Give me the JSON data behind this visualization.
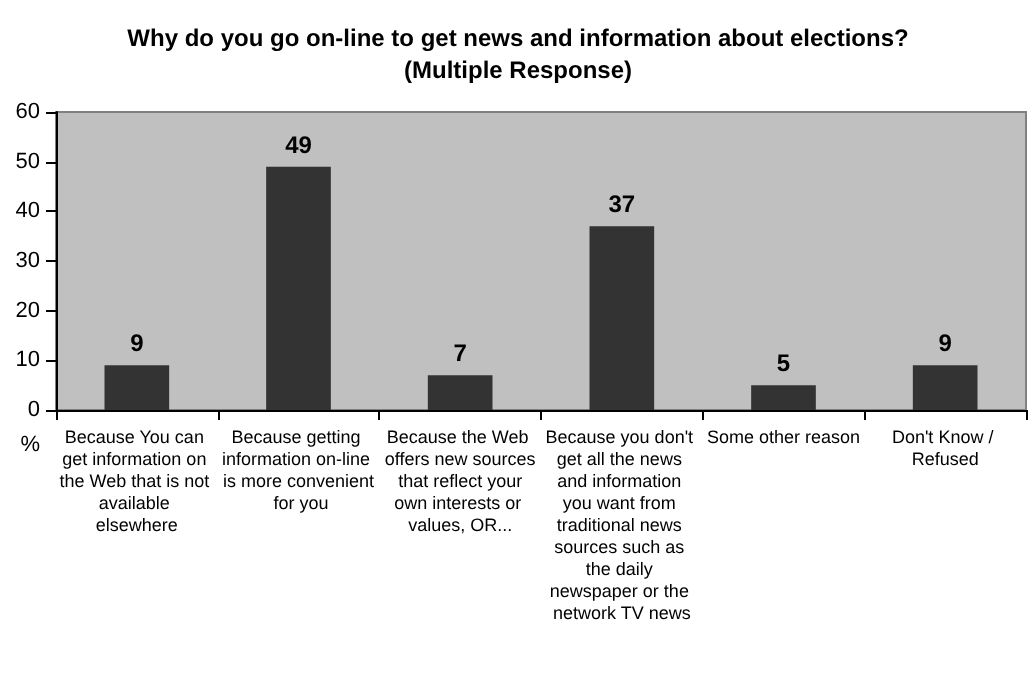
{
  "chart_data": {
    "type": "bar",
    "title": "Why do you go on-line to get news and information about elections?",
    "subtitle": "(Multiple Response)",
    "ylabel": "%",
    "categories": [
      "Because You can get information on the Web that is not available elsewhere",
      "Because getting information on-line is more convenient for you",
      "Because the Web offers new sources that reflect your own interests or values, OR...",
      "Because you don't get all the news and information you want from traditional news sources such as the daily newspaper or the network TV news",
      "Some other reason",
      "Don't Know / Refused"
    ],
    "values": [
      9,
      49,
      7,
      37,
      5,
      9
    ],
    "color": "#333333",
    "ylim": [
      0,
      60
    ],
    "yticks": [
      0,
      10,
      20,
      30,
      40,
      50,
      60
    ],
    "data_labels": true
  }
}
